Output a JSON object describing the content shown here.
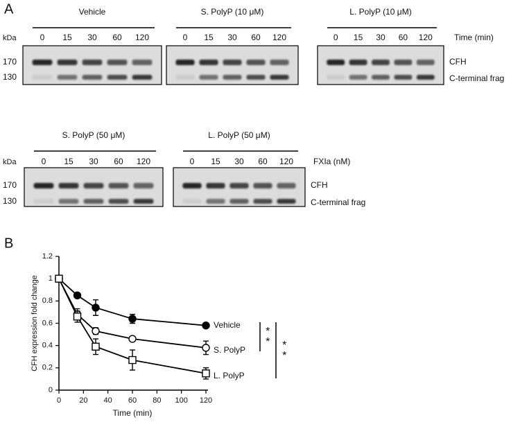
{
  "panel_labels": [
    "A",
    "B"
  ],
  "gel_rows": [
    {
      "size_unit": "kDa",
      "markers": [
        170,
        130
      ],
      "axis_label": "Time (min)",
      "bands": [
        "CFH",
        "C-terminal frag"
      ],
      "gels": [
        {
          "title": "Vehicle",
          "lanes": [
            0,
            15,
            30,
            60,
            120
          ]
        },
        {
          "title": "S. PolyP (10 μM)",
          "lanes": [
            0,
            15,
            30,
            60,
            120
          ]
        },
        {
          "title": "L. PolyP (10 μM)",
          "lanes": [
            0,
            15,
            30,
            60,
            120
          ]
        }
      ]
    },
    {
      "size_unit": "kDa",
      "markers": [
        170,
        130
      ],
      "axis_label": "FXIa (nM)",
      "bands": [
        "CFH",
        "C-terminal frag"
      ],
      "gels": [
        {
          "title": "S. PolyP (50 μM)",
          "lanes": [
            0,
            15,
            30,
            60,
            120
          ]
        },
        {
          "title": "L. PolyP (50 μM)",
          "lanes": [
            0,
            15,
            30,
            60,
            120
          ]
        }
      ]
    }
  ],
  "chart_data": {
    "type": "line",
    "xlabel": "Time (min)",
    "ylabel": "CFH expression fold change",
    "x": [
      0,
      15,
      30,
      60,
      120
    ],
    "xlim": [
      0,
      120
    ],
    "xticks": [
      0,
      20,
      40,
      60,
      80,
      100,
      120
    ],
    "ylim": [
      0,
      1.2
    ],
    "yticks": [
      0,
      0.2,
      0.4,
      0.6,
      0.8,
      1,
      1.2
    ],
    "series": [
      {
        "name": "Vehicle",
        "color": "#000000",
        "marker": "circle",
        "filled": true,
        "values": [
          1,
          0.85,
          0.74,
          0.64,
          0.58
        ],
        "errors": [
          0,
          0.02,
          0.07,
          0.04,
          0.02
        ]
      },
      {
        "name": "S. PolyP",
        "color": "#000000",
        "marker": "circle",
        "filled": false,
        "values": [
          1,
          0.68,
          0.53,
          0.46,
          0.38
        ],
        "errors": [
          0,
          0.05,
          0.03,
          0.02,
          0.06
        ]
      },
      {
        "name": "L. PolyP",
        "color": "#000000",
        "marker": "square",
        "filled": false,
        "values": [
          1,
          0.66,
          0.39,
          0.27,
          0.15
        ],
        "errors": [
          0,
          0.05,
          0.07,
          0.09,
          0.05
        ]
      }
    ],
    "annotations": [
      "**",
      "**"
    ]
  }
}
